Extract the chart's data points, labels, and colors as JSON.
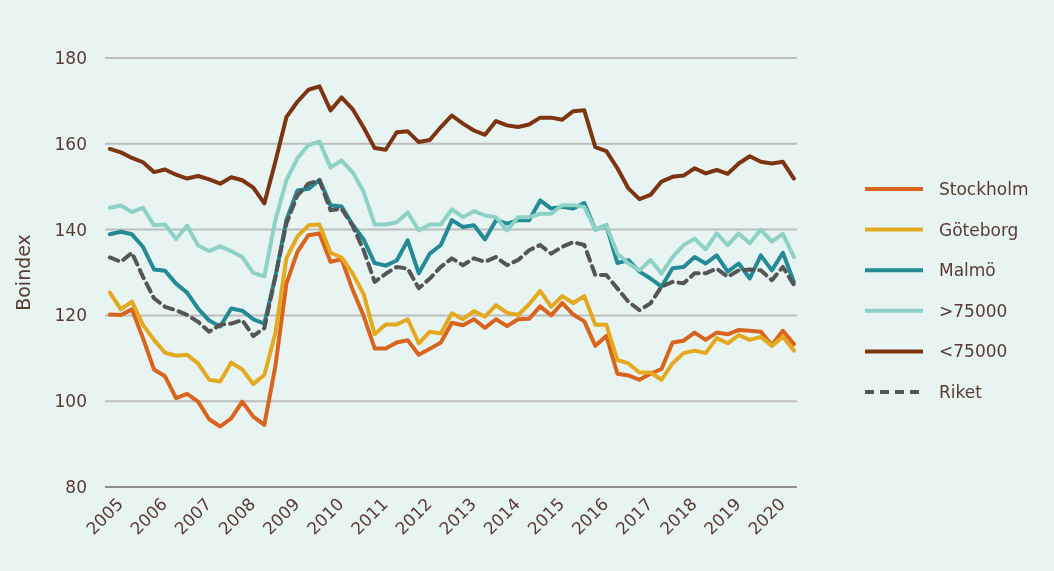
{
  "chart_data": {
    "type": "line",
    "ylabel": "Boindex",
    "ylim": [
      80,
      180
    ],
    "yticks": [
      80,
      100,
      120,
      140,
      160,
      180
    ],
    "xlim": [
      2004.89,
      2020.57
    ],
    "xticks": [
      2005,
      2006,
      2007,
      2008,
      2009,
      2010,
      2011,
      2012,
      2013,
      2014,
      2015,
      2016,
      2017,
      2018,
      2019,
      2020
    ],
    "grid": "y",
    "legend": "right",
    "line_style": "solid",
    "x": [
      2005,
      2005.25,
      2005.5,
      2005.75,
      2006,
      2006.25,
      2006.5,
      2006.75,
      2007,
      2007.25,
      2007.5,
      2007.75,
      2008,
      2008.25,
      2008.5,
      2008.75,
      2009,
      2009.25,
      2009.5,
      2009.75,
      2010,
      2010.25,
      2010.5,
      2010.75,
      2011,
      2011.25,
      2011.5,
      2011.75,
      2012,
      2012.25,
      2012.5,
      2012.75,
      2013,
      2013.25,
      2013.5,
      2013.75,
      2014,
      2014.25,
      2014.5,
      2014.75,
      2015,
      2015.25,
      2015.5,
      2015.75,
      2016,
      2016.25,
      2016.5,
      2016.75,
      2017,
      2017.25,
      2017.5,
      2017.75,
      2018,
      2018.25,
      2018.5,
      2018.75,
      2019,
      2019.25,
      2019.5,
      2019.75,
      2020,
      2020.25,
      2020.5
    ],
    "series": [
      {
        "name": "Stockholm",
        "color": "#d9641e",
        "values": [
          120.2,
          120.1,
          121.4,
          114.7,
          107.4,
          105.8,
          100.7,
          101.7,
          99.9,
          95.8,
          94.1,
          96,
          99.9,
          96.4,
          94.5,
          108.1,
          127.4,
          134.8,
          138.7,
          139.1,
          132.5,
          133.1,
          126,
          119.9,
          112.3,
          112.3,
          113.7,
          114.2,
          110.8,
          112.2,
          113.7,
          118.3,
          117.7,
          119.1,
          117.1,
          119.1,
          117.5,
          119.1,
          119.2,
          122.1,
          120,
          122.9,
          120.2,
          118.6,
          112.9,
          115.2,
          106.4,
          106,
          105,
          106.4,
          107.5,
          113.7,
          114.1,
          116,
          114.3,
          116,
          115.6,
          116.6,
          116.4,
          116.2,
          113.1,
          116.4,
          113.3
        ]
      },
      {
        "name": "Göteborg",
        "color": "#e3a91f",
        "values": [
          125.3,
          121.4,
          123.2,
          117.8,
          114.3,
          111.3,
          110.6,
          110.8,
          108.8,
          105,
          104.6,
          109,
          107.4,
          104,
          106.1,
          115.8,
          133.3,
          138.4,
          141,
          141.2,
          134.6,
          133.5,
          129.8,
          125,
          115.6,
          117.9,
          117.9,
          119.1,
          113.5,
          116.2,
          115.8,
          120.5,
          119.1,
          121,
          119.7,
          122.4,
          120.6,
          120.1,
          122.6,
          125.7,
          122,
          124.5,
          122.9,
          124.5,
          117.8,
          117.8,
          109.6,
          108.8,
          106.7,
          106.7,
          105,
          108.8,
          111.2,
          111.8,
          111.2,
          114.7,
          113.5,
          115.4,
          114.3,
          115,
          112.9,
          115,
          111.8
        ]
      },
      {
        "name": "Malmö",
        "color": "#238a96",
        "values": [
          138.9,
          139.5,
          138.9,
          136,
          130.7,
          130.4,
          127.4,
          125.3,
          121.6,
          118.8,
          117.4,
          121.6,
          121.1,
          119.1,
          118.1,
          129,
          142.2,
          149.1,
          149.5,
          151.6,
          145.7,
          145.4,
          141.2,
          137.7,
          132.2,
          131.6,
          132.8,
          137.5,
          129.8,
          134.4,
          136.4,
          142.2,
          140.6,
          141,
          137.7,
          142.2,
          141.4,
          142.2,
          142.2,
          146.8,
          144.9,
          145.3,
          144.9,
          146.2,
          140,
          141,
          132.2,
          132.9,
          130.2,
          128.6,
          126.7,
          131,
          131.3,
          133.6,
          132.1,
          134,
          130.2,
          132.1,
          128.6,
          134,
          130.5,
          134.6,
          127.8
        ]
      },
      {
        "name": ">75000",
        "color": "#8ed1c6",
        "values": [
          145.1,
          145.6,
          144.1,
          145.1,
          141,
          141.2,
          137.8,
          140.9,
          136.3,
          135,
          136.1,
          135,
          133.6,
          129.9,
          129.1,
          142.2,
          151.5,
          156.6,
          159.7,
          160.5,
          154.5,
          156.1,
          153.4,
          148.8,
          141.2,
          141.2,
          141.7,
          144,
          139.8,
          141.2,
          141.2,
          144.7,
          142.9,
          144.3,
          143.3,
          142.9,
          139.8,
          142.9,
          142.9,
          143.7,
          143.7,
          145.7,
          145.7,
          145.3,
          140,
          141,
          134.4,
          132.1,
          130.5,
          132.9,
          129.8,
          133.6,
          136.4,
          137.9,
          135.4,
          139.1,
          136.4,
          139.1,
          136.8,
          140,
          137.2,
          139,
          133.6
        ]
      },
      {
        "name": "<75000",
        "color": "#7c3510",
        "values": [
          158.8,
          158,
          156.7,
          155.7,
          153.4,
          154,
          152.8,
          151.9,
          152.5,
          151.7,
          150.7,
          152.2,
          151.5,
          149.8,
          146.1,
          155.8,
          166.2,
          169.8,
          172.6,
          173.4,
          167.8,
          170.8,
          168.1,
          163.8,
          159,
          158.6,
          162.7,
          162.9,
          160.4,
          160.9,
          163.9,
          166.6,
          164.7,
          163.1,
          162.1,
          165.3,
          164.3,
          163.9,
          164.5,
          166.1,
          166.1,
          165.6,
          167.6,
          167.8,
          159.2,
          158.3,
          154.3,
          149.6,
          147.1,
          148.1,
          151.2,
          152.3,
          152.6,
          154.3,
          153.1,
          153.9,
          153,
          155.4,
          157.1,
          155.8,
          155.4,
          155.8,
          151.9
        ]
      },
      {
        "name": "Riket",
        "color": "#555555",
        "line_style": "dashed",
        "values": [
          133.5,
          132.5,
          134.6,
          129,
          124,
          122,
          121.2,
          120.1,
          118.5,
          116.2,
          117.8,
          118.1,
          118.9,
          115.2,
          117,
          129,
          141.4,
          148,
          150.7,
          151.5,
          144.5,
          144.9,
          140.9,
          135.2,
          127.8,
          129.7,
          131.3,
          130.9,
          126.3,
          128.6,
          131.3,
          133.3,
          131.7,
          133.3,
          132.5,
          133.6,
          131.7,
          132.9,
          135.2,
          136.4,
          134.4,
          136,
          137.1,
          136.4,
          129.4,
          129.4,
          126.3,
          123.2,
          121.2,
          122.8,
          126.7,
          127.8,
          127.5,
          129.8,
          129.8,
          130.9,
          129,
          130.5,
          130.7,
          130.5,
          128.2,
          131.3,
          127.1
        ]
      }
    ]
  }
}
